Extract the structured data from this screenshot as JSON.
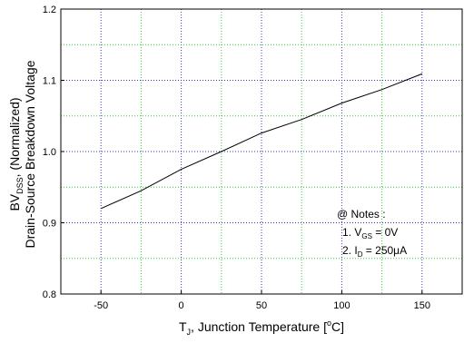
{
  "chart_data": {
    "type": "line",
    "xlim": [
      -75,
      175
    ],
    "ylim": [
      0.8,
      1.2
    ],
    "x_ticks": [
      -50,
      0,
      50,
      100,
      150
    ],
    "x_tick_labels": [
      "-50",
      "0",
      "50",
      "100",
      "150"
    ],
    "y_ticks": [
      0.8,
      0.9,
      1.0,
      1.1,
      1.2
    ],
    "y_tick_labels": [
      "0.8",
      "0.9",
      "1.0",
      "1.1",
      "1.2"
    ],
    "grid": true,
    "grid_colors": {
      "major": "#3333cc",
      "minor": "#33cc33"
    },
    "line_color": "#000000",
    "xlabel": {
      "main": "T",
      "sub": "J",
      "rest": ", Junction Temperature [",
      "sup": "o",
      "end": "C]"
    },
    "ylabel_line1": {
      "pre": "BV",
      "sub": "DSS",
      "post": ", (Normalized)"
    },
    "ylabel_line2": "Drain-Source Breakdown Voltage",
    "series": [
      {
        "x": [
          -50,
          -25,
          0,
          25,
          50,
          75,
          100,
          125,
          150
        ],
        "y": [
          0.92,
          0.945,
          0.975,
          1.0,
          1.026,
          1.045,
          1.068,
          1.087,
          1.109
        ]
      }
    ],
    "notes": {
      "title": "@ Notes :",
      "note1": {
        "pre": "1. V",
        "sub": "GS",
        "post": " = 0V"
      },
      "note2": {
        "pre": "2. I",
        "sub": "D",
        "post": " = 250μA"
      }
    }
  }
}
